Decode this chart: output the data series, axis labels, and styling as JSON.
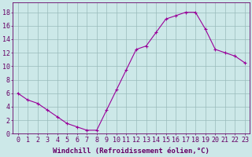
{
  "x": [
    0,
    1,
    2,
    3,
    4,
    5,
    6,
    7,
    8,
    9,
    10,
    11,
    12,
    13,
    14,
    15,
    16,
    17,
    18,
    19,
    20,
    21,
    22,
    23
  ],
  "y": [
    6,
    5,
    4.5,
    3.5,
    2.5,
    1.5,
    1,
    0.5,
    0.5,
    3.5,
    6.5,
    9.5,
    12.5,
    13,
    15,
    17,
    17.5,
    18,
    18,
    15.5,
    12.5,
    12,
    11.5,
    10.5
  ],
  "line_color": "#990099",
  "marker": "+",
  "marker_size": 3,
  "background_color": "#cce8e8",
  "grid_color": "#99bbbb",
  "xlabel": "Windchill (Refroidissement éolien,°C)",
  "xlabel_fontsize": 6.5,
  "ylabel_ticks": [
    0,
    2,
    4,
    6,
    8,
    10,
    12,
    14,
    16,
    18
  ],
  "xtick_labels": [
    "0",
    "1",
    "2",
    "3",
    "4",
    "5",
    "6",
    "7",
    "8",
    "9",
    "10",
    "11",
    "12",
    "13",
    "14",
    "15",
    "16",
    "17",
    "18",
    "19",
    "20",
    "21",
    "22",
    "23"
  ],
  "ylim": [
    0,
    19.5
  ],
  "xlim": [
    -0.5,
    23.5
  ],
  "tick_color": "#660066",
  "tick_fontsize": 6,
  "axis_label_color": "#660066"
}
